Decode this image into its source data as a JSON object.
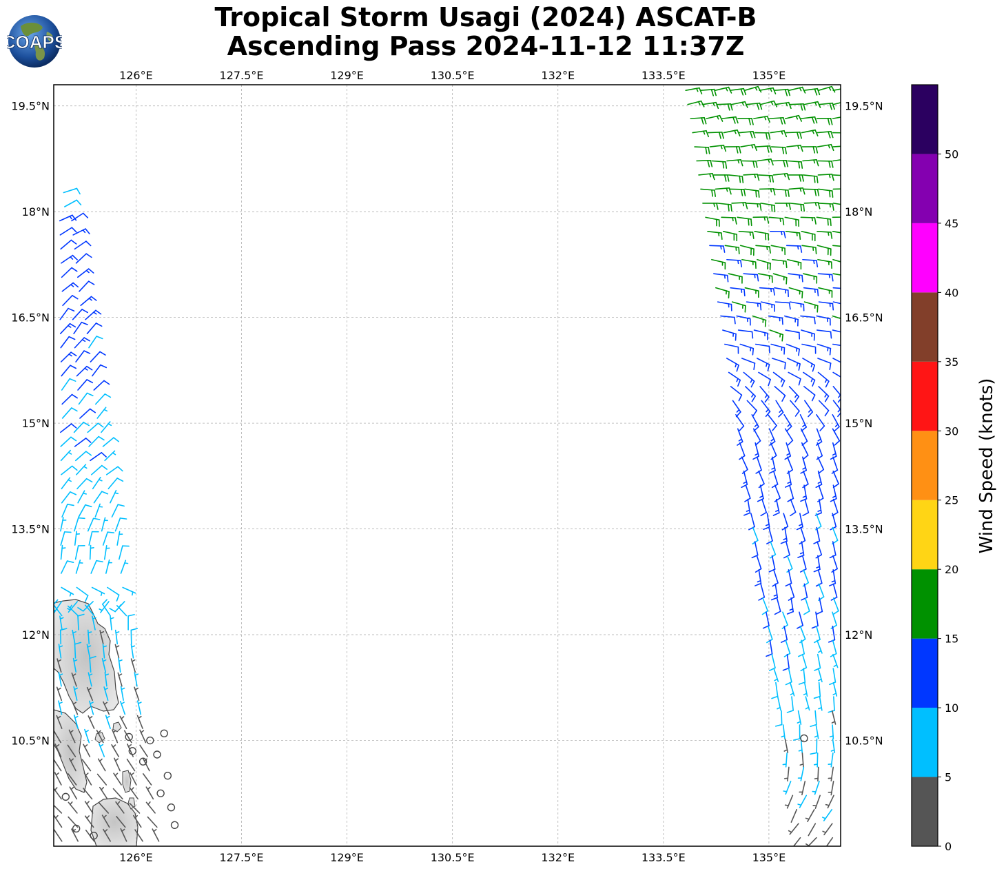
{
  "title": {
    "line1": "Tropical Storm Usagi (2024) ASCAT-B",
    "line2": "Ascending Pass 2024-11-12 11:37Z"
  },
  "logo": {
    "text": "COAPS",
    "icon": "globe-logo-icon"
  },
  "map": {
    "lon_range": [
      124.83,
      136.02
    ],
    "lat_range": [
      9.0,
      19.8
    ],
    "lon_ticks": [
      "126°E",
      "127.5°E",
      "129°E",
      "130.5°E",
      "132°E",
      "133.5°E",
      "135°E"
    ],
    "lat_ticks": [
      "19.5°N",
      "18°N",
      "16.5°N",
      "15°N",
      "13.5°N",
      "12°N",
      "10.5°N"
    ],
    "gridlines": true,
    "land_color": "#dcdcdc",
    "coastline_color": "#444444"
  },
  "colorbar": {
    "label": "Wind Speed (knots)",
    "tick_labels": [
      "0",
      "5",
      "10",
      "15",
      "20",
      "25",
      "30",
      "35",
      "40",
      "45",
      "50"
    ],
    "bins": [
      {
        "min": 0,
        "max": 5,
        "color": "#555555"
      },
      {
        "min": 5,
        "max": 10,
        "color": "#00bfff"
      },
      {
        "min": 10,
        "max": 15,
        "color": "#0037ff"
      },
      {
        "min": 15,
        "max": 20,
        "color": "#009100"
      },
      {
        "min": 20,
        "max": 25,
        "color": "#ffd515"
      },
      {
        "min": 25,
        "max": 30,
        "color": "#ff9014"
      },
      {
        "min": 30,
        "max": 35,
        "color": "#ff1515"
      },
      {
        "min": 35,
        "max": 40,
        "color": "#823f2a"
      },
      {
        "min": 40,
        "max": 45,
        "color": "#ff00ff"
      },
      {
        "min": 45,
        "max": 50,
        "color": "#8400b0"
      },
      {
        "min": 50,
        "max": 55,
        "color": "#2b0060"
      }
    ]
  },
  "swaths": [
    {
      "name": "west-swath",
      "lat_range": [
        9.0,
        18.35
      ],
      "lon_west_at_top": 124.83,
      "lon_east_at_top": 125.1,
      "lon_west_at_bottom": 124.83,
      "lon_east_at_bottom": 126.45,
      "rows": [
        {
          "lat": 18.3,
          "speed": 7,
          "dir": 70
        },
        {
          "lat": 17.9,
          "speed": 11,
          "dir": 60
        },
        {
          "lat": 17.4,
          "speed": 12,
          "dir": 55
        },
        {
          "lat": 16.8,
          "speed": 12,
          "dir": 45
        },
        {
          "lat": 16.2,
          "speed": 12,
          "dir": 40
        },
        {
          "lat": 15.6,
          "speed": 11,
          "dir": 40
        },
        {
          "lat": 15.0,
          "speed": 9,
          "dir": 45
        },
        {
          "lat": 14.3,
          "speed": 8,
          "dir": 50
        },
        {
          "lat": 13.6,
          "speed": 8,
          "dir": 20
        },
        {
          "lat": 12.9,
          "speed": 7,
          "dir": 5
        },
        {
          "lat": 12.2,
          "speed": 7,
          "dir": 355
        },
        {
          "lat": 11.5,
          "speed": 6,
          "dir": 350
        },
        {
          "lat": 10.8,
          "speed": 5,
          "dir": 340
        },
        {
          "lat": 10.1,
          "speed": 3,
          "dir": 330
        },
        {
          "lat": 9.4,
          "speed": 3,
          "dir": 320
        }
      ]
    },
    {
      "name": "east-swath",
      "lat_range": [
        9.0,
        19.8
      ],
      "lon_west_at_top": 133.7,
      "lon_east_at_top": 136.02,
      "lon_west_at_bottom": 135.35,
      "lon_east_at_bottom": 136.02,
      "rows": [
        {
          "lat": 19.7,
          "speed": 17,
          "dir": 80
        },
        {
          "lat": 19.1,
          "speed": 18,
          "dir": 85
        },
        {
          "lat": 18.5,
          "speed": 18,
          "dir": 90
        },
        {
          "lat": 17.9,
          "speed": 17,
          "dir": 95
        },
        {
          "lat": 17.3,
          "speed": 16,
          "dir": 100
        },
        {
          "lat": 16.7,
          "speed": 14,
          "dir": 100
        },
        {
          "lat": 16.1,
          "speed": 13,
          "dir": 105
        },
        {
          "lat": 15.4,
          "speed": 13,
          "dir": 140
        },
        {
          "lat": 14.7,
          "speed": 12,
          "dir": 160
        },
        {
          "lat": 14.0,
          "speed": 12,
          "dir": 165
        },
        {
          "lat": 13.3,
          "speed": 11,
          "dir": 165
        },
        {
          "lat": 12.6,
          "speed": 11,
          "dir": 165
        },
        {
          "lat": 11.9,
          "speed": 9,
          "dir": 165
        },
        {
          "lat": 11.2,
          "speed": 7,
          "dir": 170
        },
        {
          "lat": 10.5,
          "speed": 6,
          "dir": 175
        },
        {
          "lat": 9.8,
          "speed": 4,
          "dir": 200
        },
        {
          "lat": 9.2,
          "speed": 3,
          "dir": 220
        }
      ]
    }
  ],
  "calm_points": [
    {
      "lon": 126.4,
      "lat": 10.6
    },
    {
      "lon": 126.2,
      "lat": 10.5
    },
    {
      "lon": 125.9,
      "lat": 10.55
    },
    {
      "lon": 126.1,
      "lat": 10.2
    },
    {
      "lon": 126.3,
      "lat": 10.3
    },
    {
      "lon": 126.45,
      "lat": 10.0
    },
    {
      "lon": 126.35,
      "lat": 9.75
    },
    {
      "lon": 126.5,
      "lat": 9.55
    },
    {
      "lon": 126.55,
      "lat": 9.3
    },
    {
      "lon": 125.0,
      "lat": 9.7
    },
    {
      "lon": 125.15,
      "lat": 9.25
    },
    {
      "lon": 125.4,
      "lat": 9.15
    },
    {
      "lon": 125.95,
      "lat": 10.35
    },
    {
      "lon": 135.5,
      "lat": 10.53
    }
  ]
}
